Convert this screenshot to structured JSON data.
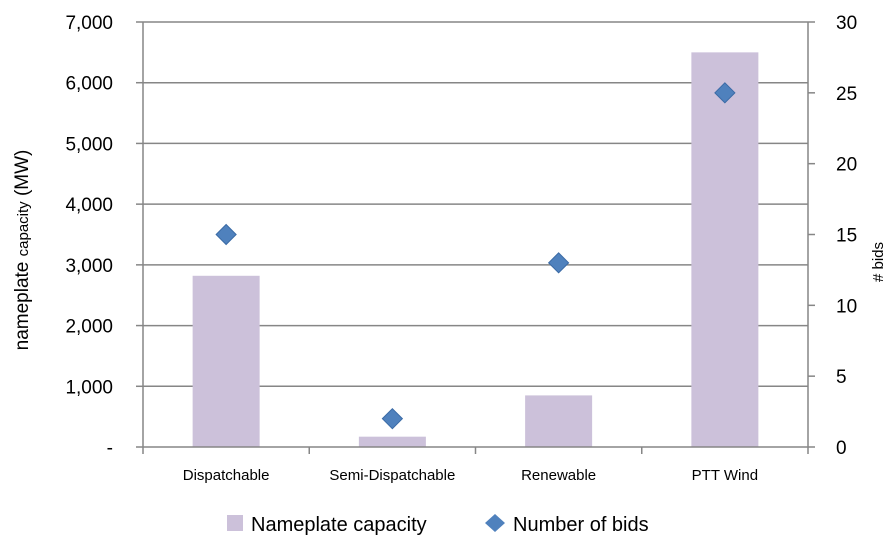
{
  "chart_data": {
    "type": "bar",
    "categories": [
      "Dispatchable",
      "Semi-Dispatchable",
      "Renewable",
      "PTT Wind"
    ],
    "series": [
      {
        "name": "Nameplate capacity",
        "kind": "bar",
        "axis": "left",
        "values": [
          2820,
          170,
          850,
          6500
        ],
        "color": "#ccc1da"
      },
      {
        "name": "Number of bids",
        "kind": "scatter",
        "marker": "diamond",
        "axis": "right",
        "values": [
          15,
          2,
          13,
          25
        ],
        "color": "#4f81bd"
      }
    ],
    "y_left": {
      "label_main": "nameplate ",
      "label_small": "capacity",
      "label_end": " (MW)",
      "lim": [
        0,
        7000
      ],
      "ticks": [
        0,
        1000,
        2000,
        3000,
        4000,
        5000,
        6000,
        7000
      ],
      "tick_labels": [
        "-",
        "1,000",
        "2,000",
        "3,000",
        "4,000",
        "5,000",
        "6,000",
        "7,000"
      ]
    },
    "y_right": {
      "label": "# bids",
      "lim": [
        0,
        30
      ],
      "ticks": [
        0,
        5,
        10,
        15,
        20,
        25,
        30
      ],
      "tick_labels": [
        "0",
        "5",
        "10",
        "15",
        "20",
        "25",
        "30"
      ]
    },
    "grid": true,
    "legend_position": "bottom"
  }
}
